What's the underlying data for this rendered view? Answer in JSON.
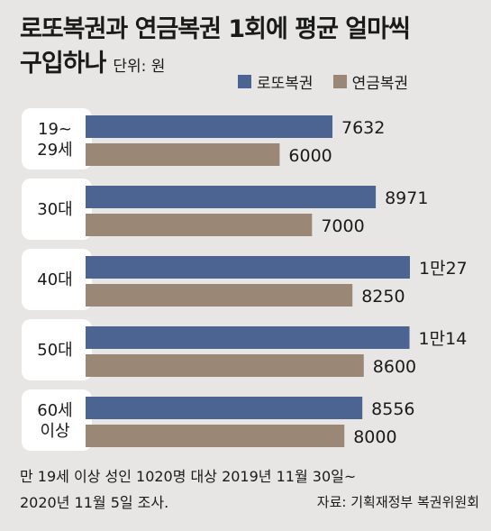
{
  "header": {
    "title_line1": "로또복권과 연금복권 1회에 평균 얼마씩",
    "title_line2": "구입하나",
    "unit": "단위: 원"
  },
  "colors": {
    "lotto": "#4b6491",
    "pension": "#9a8775"
  },
  "chart_data": {
    "type": "bar",
    "orientation": "horizontal",
    "categories": [
      [
        "19~",
        "29세"
      ],
      [
        "30대"
      ],
      [
        "40대"
      ],
      [
        "50대"
      ],
      [
        "60세",
        "이상"
      ]
    ],
    "series": [
      {
        "name": "로또복권",
        "values": [
          7632,
          8971,
          10027,
          10014,
          8556
        ],
        "labels": [
          "7632",
          "8971",
          "1만27",
          "1만14",
          "8556"
        ]
      },
      {
        "name": "연금복권",
        "values": [
          6000,
          7000,
          8250,
          8600,
          8000
        ],
        "labels": [
          "6000",
          "7000",
          "8250",
          "8600",
          "8000"
        ]
      }
    ],
    "xlim": [
      0,
      10027
    ],
    "grid": false,
    "legend_position": "top-right"
  },
  "footer": {
    "note_line1": "만 19세 이상 성인 1020명 대상 2019년 11월 30일~",
    "note_line2": "2020년 11월 5일 조사.",
    "source": "자료: 기획재정부 복권위원회"
  }
}
